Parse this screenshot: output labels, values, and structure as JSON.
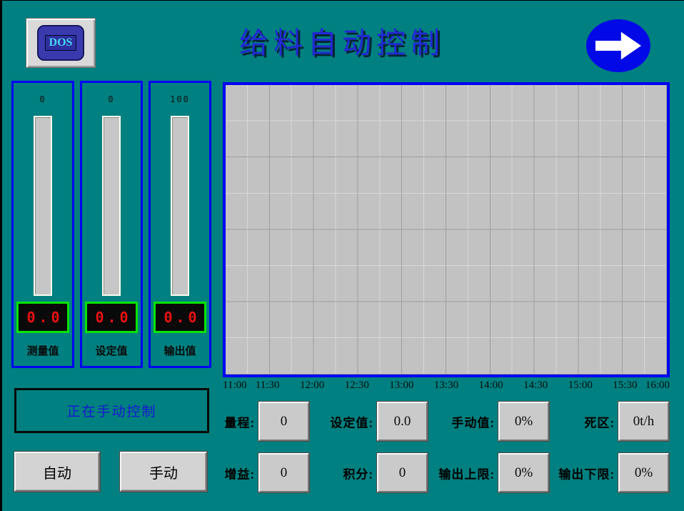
{
  "header": {
    "dos_button_label": "DOS",
    "title": "给料自动控制",
    "nav_arrow_icon": "right-arrow-icon"
  },
  "gauges": [
    {
      "scale_top": "0",
      "value": "0.0",
      "label": "测量值"
    },
    {
      "scale_top": "0",
      "value": "0.0",
      "label": "设定值"
    },
    {
      "scale_top": "100",
      "value": "0.0",
      "label": "输出值"
    }
  ],
  "chart_data": {
    "type": "line",
    "title": "",
    "x_ticks": [
      "11:00",
      "11:30",
      "12:00",
      "12:30",
      "13:00",
      "13:30",
      "14:00",
      "14:30",
      "15:00",
      "15:30",
      "16:00"
    ],
    "series": [],
    "grid": "on",
    "note_layout": "empty trend grid, no curve plotted"
  },
  "status": {
    "text": "正在手动控制"
  },
  "mode_buttons": [
    {
      "label": "自动"
    },
    {
      "label": "手动"
    }
  ],
  "params": {
    "fields": [
      {
        "label": "量程:",
        "value": "0"
      },
      {
        "label": "设定值:",
        "value": "0.0"
      },
      {
        "label": "手动值:",
        "value": "0%"
      },
      {
        "label": "死区:",
        "value": "0t/h"
      },
      {
        "label": "增益:",
        "value": "0"
      },
      {
        "label": "积分:",
        "value": "0"
      },
      {
        "label": "输出上限:",
        "value": "0%"
      },
      {
        "label": "输出下限:",
        "value": "0%"
      }
    ]
  },
  "colors": {
    "background": "#008080",
    "panel_border_blue": "#0202f2",
    "chart_bg": "#c2c2c2",
    "display_text_red": "#e91111",
    "display_border_green": "#07e407",
    "title_blue": "#2228d2",
    "status_text_blue": "#1818cf",
    "arrow_ellipse_blue": "#0009e6",
    "button_gray": "#d3d3d3"
  }
}
